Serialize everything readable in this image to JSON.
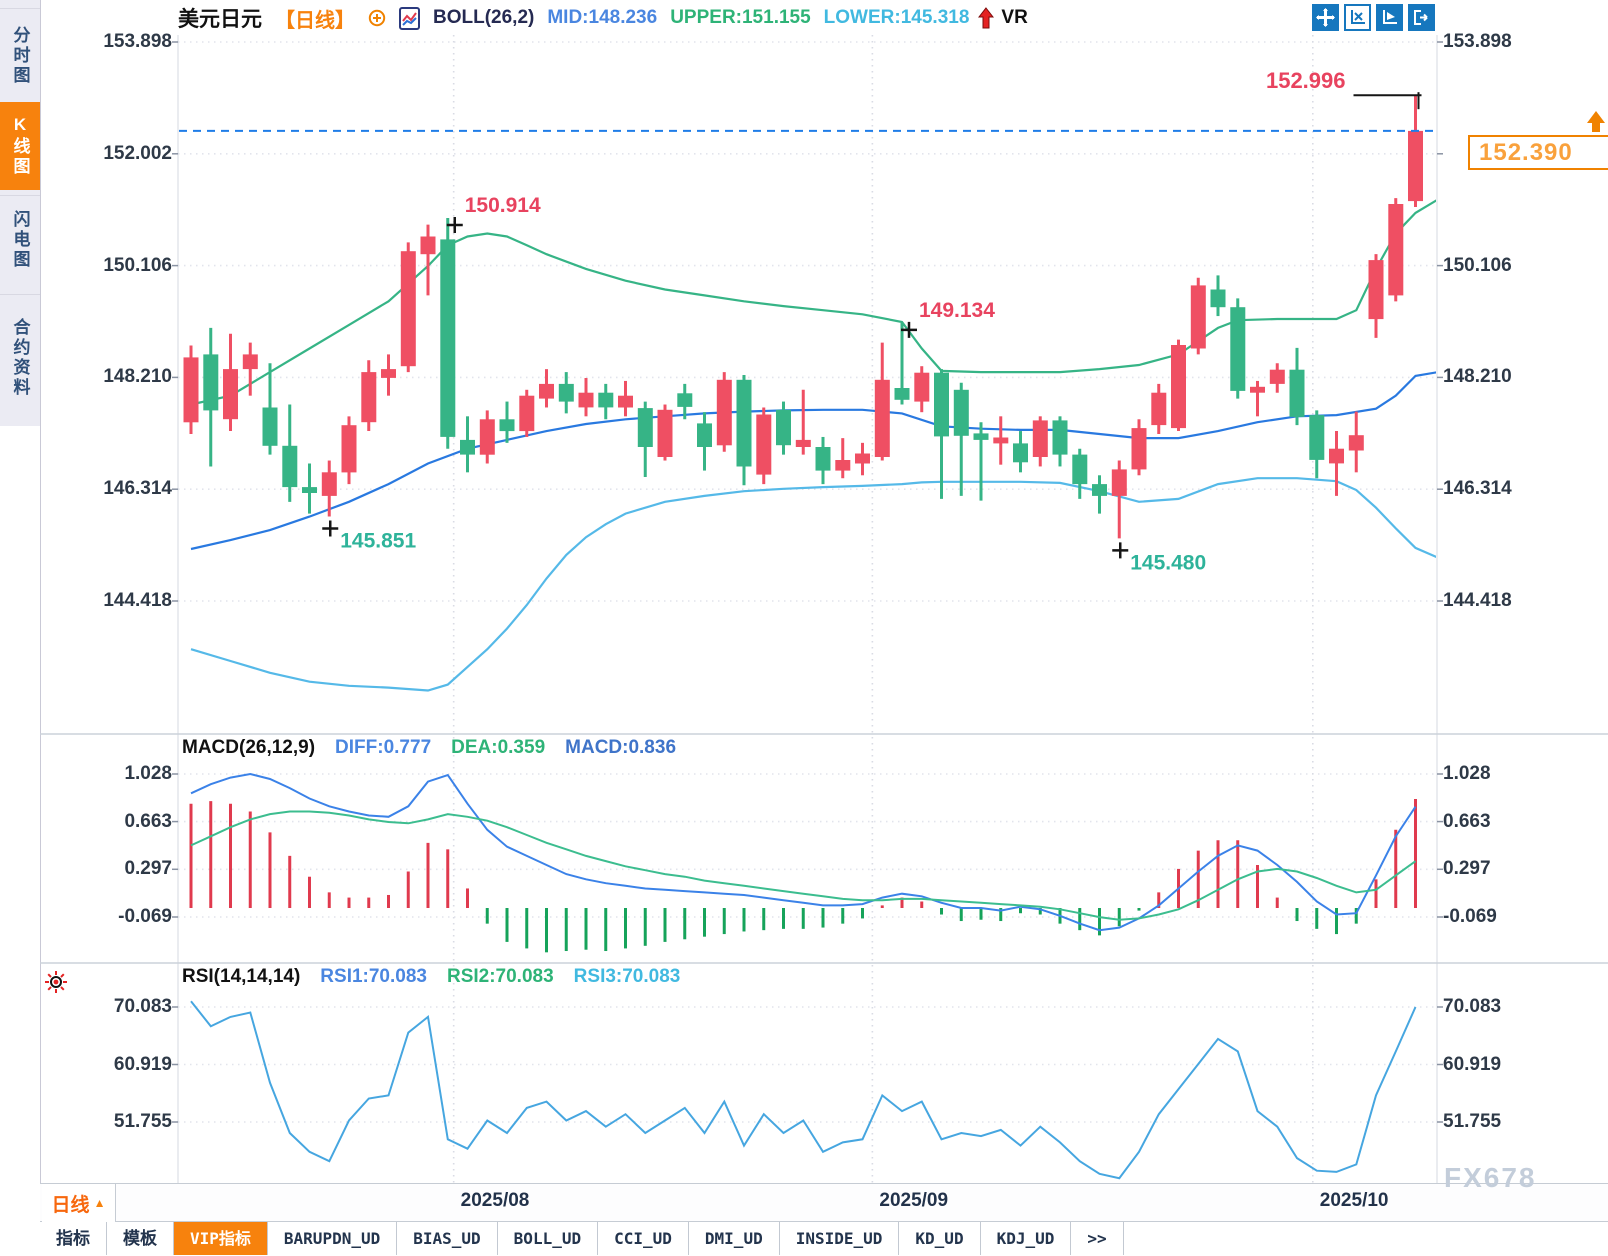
{
  "sidebar": {
    "tabs": [
      {
        "label": "分时图",
        "active": false
      },
      {
        "label": "K线图",
        "active": true
      },
      {
        "label": "闪电图",
        "active": false
      },
      {
        "label": "合约资料",
        "active": false
      }
    ]
  },
  "header": {
    "symbol": "美元日元",
    "period_tag": "【日线】",
    "boll_label": "BOLL(26,2)",
    "mid": "MID:148.236",
    "upper": "UPPER:151.155",
    "lower": "LOWER:145.318",
    "vr": "VR"
  },
  "toolbar": {
    "icons": [
      "move-icon",
      "axis-scale-icon",
      "chart-play-icon",
      "exit-icon"
    ]
  },
  "axes": {
    "main": [
      "153.898",
      "152.002",
      "150.106",
      "148.210",
      "146.314",
      "144.418"
    ],
    "macd": [
      "1.028",
      "0.663",
      "0.297",
      "-0.069"
    ],
    "rsi": [
      "70.083",
      "60.919",
      "51.755"
    ],
    "dates": [
      {
        "label": "2025/08",
        "i": 13.3
      },
      {
        "label": "2025/09",
        "i": 34.5
      },
      {
        "label": "2025/10",
        "i": 56.8
      }
    ]
  },
  "macd_header": {
    "name": "MACD(26,12,9)",
    "diff": "DIFF:0.777",
    "dea": "DEA:0.359",
    "macd": "MACD:0.836"
  },
  "rsi_header": {
    "name": "RSI(14,14,14)",
    "rsi1": "RSI1:70.083",
    "rsi2": "RSI2:70.083",
    "rsi3": "RSI3:70.083"
  },
  "price_tag": {
    "value": "152.390"
  },
  "footer": {
    "period_button": "日线",
    "tabs": [
      {
        "label": "指标",
        "active": false
      },
      {
        "label": "模板",
        "active": false
      },
      {
        "label": "VIP指标",
        "active": true
      },
      {
        "label": "BARUPDN_UD",
        "active": false
      },
      {
        "label": "BIAS_UD",
        "active": false
      },
      {
        "label": "BOLL_UD",
        "active": false
      },
      {
        "label": "CCI_UD",
        "active": false
      },
      {
        "label": "DMI_UD",
        "active": false
      },
      {
        "label": "INSIDE_UD",
        "active": false
      },
      {
        "label": "KD_UD",
        "active": false
      },
      {
        "label": "KDJ_UD",
        "active": false
      },
      {
        "label": ">>",
        "active": false
      }
    ],
    "watermark": "FX678"
  },
  "colors": {
    "up": "#ef4f63",
    "down": "#36b486",
    "boll_mid": "#2979e0",
    "boll_upper": "#36b486",
    "boll_lower": "#55b9e8",
    "macd_diff": "#3b82e8",
    "macd_dea": "#3cbd8f",
    "macd_bar_up": "#e03a4e",
    "macd_bar_down": "#16a35a",
    "rsi_line": "#46a6e0",
    "accent_orange": "#f7820d",
    "price_line": "#1f7de8",
    "anno_high": "#e8435f",
    "anno_low": "#2eb39a",
    "grid": "#e2e4ec",
    "grid_month": "#d9dbe4"
  },
  "chart_data": {
    "type": "candlestick",
    "title": "美元日元 日线 (USD/JPY daily with BOLL(26,2), MACD(26,12,9), RSI(14,14,14))",
    "ylim": [
      144.418,
      153.898
    ],
    "current_price": 152.39,
    "candles": [
      [
        147.45,
        148.75,
        147.25,
        148.55
      ],
      [
        148.6,
        149.05,
        146.7,
        147.65
      ],
      [
        147.5,
        148.95,
        147.3,
        148.35
      ],
      [
        148.35,
        148.8,
        147.9,
        148.6
      ],
      [
        147.7,
        148.45,
        146.9,
        147.05
      ],
      [
        147.05,
        147.75,
        146.1,
        146.35
      ],
      [
        146.35,
        146.75,
        145.9,
        146.25
      ],
      [
        146.2,
        146.8,
        145.851,
        146.6
      ],
      [
        146.6,
        147.55,
        146.4,
        147.4
      ],
      [
        147.45,
        148.5,
        147.3,
        148.3
      ],
      [
        148.2,
        148.6,
        147.9,
        148.35
      ],
      [
        148.4,
        150.5,
        148.3,
        150.35
      ],
      [
        150.3,
        150.8,
        149.6,
        150.6
      ],
      [
        150.55,
        150.914,
        147.0,
        147.2
      ],
      [
        147.15,
        147.55,
        146.6,
        146.9
      ],
      [
        146.9,
        147.65,
        146.75,
        147.5
      ],
      [
        147.5,
        147.8,
        147.1,
        147.3
      ],
      [
        147.3,
        148.0,
        147.2,
        147.9
      ],
      [
        147.85,
        148.35,
        147.7,
        148.1
      ],
      [
        148.1,
        148.3,
        147.6,
        147.8
      ],
      [
        147.7,
        148.2,
        147.55,
        147.95
      ],
      [
        147.95,
        148.1,
        147.5,
        147.7
      ],
      [
        147.7,
        148.15,
        147.55,
        147.9
      ],
      [
        147.69,
        147.8,
        146.52,
        147.03
      ],
      [
        146.86,
        147.75,
        146.8,
        147.66
      ],
      [
        147.94,
        148.1,
        147.5,
        147.71
      ],
      [
        147.43,
        147.62,
        146.63,
        147.03
      ],
      [
        147.06,
        148.3,
        146.95,
        148.17
      ],
      [
        148.17,
        148.25,
        146.38,
        146.7
      ],
      [
        146.56,
        147.7,
        146.4,
        147.58
      ],
      [
        147.66,
        147.8,
        146.9,
        147.06
      ],
      [
        147.03,
        148.0,
        146.9,
        147.15
      ],
      [
        147.03,
        147.2,
        146.4,
        146.63
      ],
      [
        146.63,
        147.18,
        146.5,
        146.81
      ],
      [
        146.75,
        147.1,
        146.55,
        146.92
      ],
      [
        146.86,
        148.8,
        146.8,
        148.17
      ],
      [
        148.03,
        149.134,
        147.75,
        147.83
      ],
      [
        147.8,
        148.4,
        147.62,
        148.29
      ],
      [
        148.29,
        148.35,
        146.15,
        147.21
      ],
      [
        148.0,
        148.12,
        146.2,
        147.22
      ],
      [
        147.26,
        147.45,
        146.12,
        147.15
      ],
      [
        147.09,
        147.55,
        146.73,
        147.19
      ],
      [
        147.09,
        147.3,
        146.6,
        146.77
      ],
      [
        146.86,
        147.55,
        146.7,
        147.48
      ],
      [
        147.48,
        147.55,
        146.7,
        146.9
      ],
      [
        146.9,
        147.0,
        146.15,
        146.4
      ],
      [
        146.4,
        146.55,
        145.9,
        146.2
      ],
      [
        146.2,
        146.8,
        145.48,
        146.65
      ],
      [
        146.65,
        147.5,
        146.55,
        147.35
      ],
      [
        147.4,
        148.1,
        147.25,
        147.95
      ],
      [
        147.35,
        148.85,
        147.3,
        148.76
      ],
      [
        148.7,
        149.9,
        148.6,
        149.77
      ],
      [
        149.7,
        149.94,
        149.25,
        149.4
      ],
      [
        149.4,
        149.55,
        147.85,
        147.98
      ],
      [
        147.95,
        148.15,
        147.55,
        148.05
      ],
      [
        148.1,
        148.45,
        147.95,
        148.34
      ],
      [
        148.34,
        148.71,
        147.4,
        147.54
      ],
      [
        147.57,
        147.65,
        146.5,
        146.81
      ],
      [
        146.75,
        147.3,
        146.2,
        147.0
      ],
      [
        146.97,
        147.63,
        146.6,
        147.23
      ],
      [
        149.2,
        150.3,
        148.88,
        150.2
      ],
      [
        149.6,
        151.25,
        149.5,
        151.15
      ],
      [
        151.2,
        152.996,
        151.1,
        152.39
      ]
    ],
    "boll": {
      "upper": [
        [
          0,
          147.75
        ],
        [
          2,
          147.9
        ],
        [
          4,
          148.3
        ],
        [
          6,
          148.7
        ],
        [
          8,
          149.1
        ],
        [
          10,
          149.5
        ],
        [
          12,
          150.1
        ],
        [
          13,
          150.45
        ],
        [
          14,
          150.6
        ],
        [
          15,
          150.65
        ],
        [
          16,
          150.6
        ],
        [
          17,
          150.45
        ],
        [
          18,
          150.3
        ],
        [
          20,
          150.05
        ],
        [
          22,
          149.85
        ],
        [
          24,
          149.7
        ],
        [
          26,
          149.6
        ],
        [
          28,
          149.5
        ],
        [
          30,
          149.42
        ],
        [
          32,
          149.35
        ],
        [
          34,
          149.28
        ],
        [
          36,
          149.15
        ],
        [
          37,
          148.7
        ],
        [
          38,
          148.32
        ],
        [
          40,
          148.3
        ],
        [
          42,
          148.3
        ],
        [
          44,
          148.3
        ],
        [
          46,
          148.35
        ],
        [
          48,
          148.42
        ],
        [
          50,
          148.6
        ],
        [
          52,
          149.05
        ],
        [
          53,
          149.18
        ],
        [
          55,
          149.2
        ],
        [
          58,
          149.2
        ],
        [
          59,
          149.35
        ],
        [
          60,
          150.05
        ],
        [
          61,
          150.65
        ],
        [
          62,
          151.0
        ],
        [
          63.5,
          151.3
        ]
      ],
      "mid": [
        [
          0,
          145.3
        ],
        [
          2,
          145.45
        ],
        [
          4,
          145.62
        ],
        [
          6,
          145.85
        ],
        [
          8,
          146.1
        ],
        [
          10,
          146.4
        ],
        [
          12,
          146.75
        ],
        [
          14,
          147.0
        ],
        [
          16,
          147.15
        ],
        [
          18,
          147.3
        ],
        [
          20,
          147.42
        ],
        [
          22,
          147.5
        ],
        [
          24,
          147.55
        ],
        [
          26,
          147.6
        ],
        [
          28,
          147.63
        ],
        [
          30,
          147.65
        ],
        [
          32,
          147.66
        ],
        [
          34,
          147.66
        ],
        [
          36,
          147.6
        ],
        [
          38,
          147.38
        ],
        [
          40,
          147.34
        ],
        [
          42,
          147.32
        ],
        [
          44,
          147.32
        ],
        [
          46,
          147.25
        ],
        [
          48,
          147.18
        ],
        [
          50,
          147.18
        ],
        [
          52,
          147.3
        ],
        [
          54,
          147.45
        ],
        [
          56,
          147.55
        ],
        [
          58,
          147.57
        ],
        [
          60,
          147.68
        ],
        [
          61,
          147.9
        ],
        [
          62,
          148.236
        ],
        [
          63.5,
          148.32
        ]
      ],
      "lower": [
        [
          0,
          143.6
        ],
        [
          2,
          143.4
        ],
        [
          4,
          143.2
        ],
        [
          6,
          143.05
        ],
        [
          8,
          142.98
        ],
        [
          10,
          142.95
        ],
        [
          12,
          142.9
        ],
        [
          13,
          143.0
        ],
        [
          14,
          143.3
        ],
        [
          15,
          143.6
        ],
        [
          16,
          143.95
        ],
        [
          17,
          144.35
        ],
        [
          18,
          144.8
        ],
        [
          19,
          145.2
        ],
        [
          20,
          145.5
        ],
        [
          21,
          145.72
        ],
        [
          22,
          145.9
        ],
        [
          24,
          146.1
        ],
        [
          26,
          146.2
        ],
        [
          28,
          146.28
        ],
        [
          30,
          146.32
        ],
        [
          32,
          146.35
        ],
        [
          34,
          146.37
        ],
        [
          36,
          146.4
        ],
        [
          37,
          146.43
        ],
        [
          38,
          146.44
        ],
        [
          42,
          146.44
        ],
        [
          44,
          146.42
        ],
        [
          46,
          146.28
        ],
        [
          48,
          146.1
        ],
        [
          50,
          146.15
        ],
        [
          52,
          146.4
        ],
        [
          54,
          146.5
        ],
        [
          56,
          146.5
        ],
        [
          58,
          146.45
        ],
        [
          59,
          146.3
        ],
        [
          60,
          146.0
        ],
        [
          61,
          145.65
        ],
        [
          62,
          145.318
        ],
        [
          63.5,
          145.1
        ]
      ]
    },
    "macd": {
      "diff": [
        0.88,
        0.95,
        1.0,
        1.028,
        0.99,
        0.92,
        0.84,
        0.78,
        0.74,
        0.71,
        0.7,
        0.78,
        0.97,
        1.02,
        0.8,
        0.6,
        0.47,
        0.4,
        0.33,
        0.26,
        0.22,
        0.19,
        0.17,
        0.15,
        0.14,
        0.13,
        0.12,
        0.11,
        0.1,
        0.08,
        0.06,
        0.04,
        0.02,
        0.02,
        0.03,
        0.08,
        0.11,
        0.09,
        0.04,
        0.0,
        0.0,
        -0.02,
        0.01,
        -0.01,
        -0.06,
        -0.12,
        -0.17,
        -0.15,
        -0.08,
        0.02,
        0.15,
        0.28,
        0.4,
        0.48,
        0.44,
        0.33,
        0.2,
        0.05,
        -0.05,
        -0.04,
        0.25,
        0.55,
        0.777
      ],
      "dea": [
        0.48,
        0.55,
        0.62,
        0.68,
        0.72,
        0.74,
        0.74,
        0.73,
        0.71,
        0.68,
        0.66,
        0.65,
        0.68,
        0.72,
        0.7,
        0.67,
        0.62,
        0.56,
        0.5,
        0.45,
        0.4,
        0.36,
        0.32,
        0.29,
        0.26,
        0.24,
        0.21,
        0.19,
        0.17,
        0.15,
        0.13,
        0.11,
        0.09,
        0.07,
        0.06,
        0.06,
        0.07,
        0.07,
        0.06,
        0.05,
        0.04,
        0.03,
        0.02,
        0.01,
        -0.01,
        -0.04,
        -0.07,
        -0.09,
        -0.08,
        -0.05,
        -0.01,
        0.06,
        0.14,
        0.22,
        0.28,
        0.3,
        0.28,
        0.23,
        0.17,
        0.12,
        0.14,
        0.25,
        0.359
      ],
      "hist": [
        0.8,
        0.82,
        0.8,
        0.74,
        0.58,
        0.4,
        0.24,
        0.12,
        0.08,
        0.08,
        0.1,
        0.28,
        0.5,
        0.45,
        0.15,
        -0.12,
        -0.26,
        -0.31,
        -0.34,
        -0.33,
        -0.32,
        -0.33,
        -0.31,
        -0.29,
        -0.26,
        -0.24,
        -0.22,
        -0.2,
        -0.18,
        -0.17,
        -0.16,
        -0.16,
        -0.15,
        -0.12,
        -0.08,
        0.02,
        0.08,
        0.05,
        -0.05,
        -0.1,
        -0.09,
        -0.1,
        -0.04,
        -0.05,
        -0.12,
        -0.17,
        -0.21,
        -0.14,
        -0.02,
        0.12,
        0.3,
        0.44,
        0.52,
        0.52,
        0.33,
        0.08,
        -0.1,
        -0.16,
        -0.2,
        -0.12,
        0.22,
        0.6,
        0.836
      ]
    },
    "rsi": [
      71,
      67,
      68.5,
      69.2,
      58,
      50,
      47,
      45.5,
      52,
      55.5,
      56,
      66,
      68.5,
      49,
      47.5,
      52,
      50,
      54,
      55,
      52,
      53.5,
      51,
      53,
      50,
      52,
      54,
      50,
      55,
      48,
      53,
      50,
      52,
      47,
      48.5,
      49,
      56,
      53.5,
      55,
      49,
      50,
      49.5,
      50.5,
      48,
      51,
      48.5,
      45.5,
      43.5,
      42.8,
      47,
      53,
      57,
      61,
      65,
      63,
      53.5,
      51,
      46,
      44,
      43.8,
      45,
      56,
      63,
      70.083
    ],
    "annotations": [
      {
        "index": 7,
        "price": 145.851,
        "label": "145.851",
        "kind": "trough"
      },
      {
        "index": 13,
        "price": 150.914,
        "label": "150.914",
        "kind": "peak"
      },
      {
        "index": 36,
        "price": 149.134,
        "label": "149.134",
        "kind": "peak"
      },
      {
        "index": 47,
        "price": 145.48,
        "label": "145.480",
        "kind": "trough"
      },
      {
        "index": 62,
        "price": 152.996,
        "label": "152.996",
        "kind": "peak-line"
      }
    ]
  }
}
